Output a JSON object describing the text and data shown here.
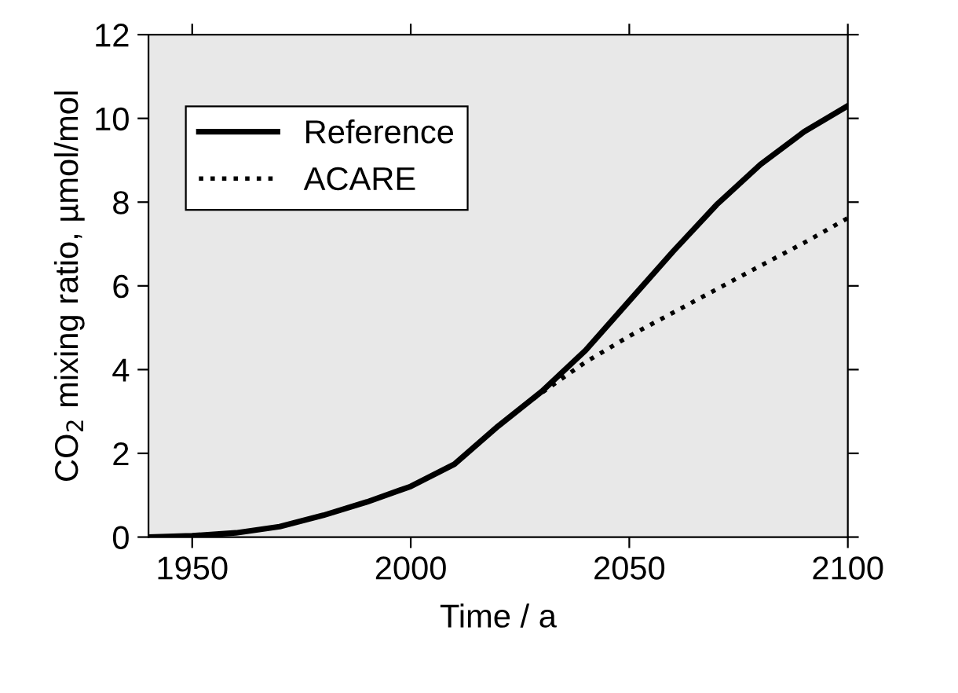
{
  "chart_data": {
    "type": "line",
    "xlabel": "Time / a",
    "ylabel": "CO$_{2}$ mixing ratio, µmol/mol",
    "xlim": [
      1940,
      2100
    ],
    "xticks": [
      1950,
      2000,
      2050,
      2100
    ],
    "ylim": [
      0,
      12
    ],
    "yticks": [
      0,
      2,
      4,
      6,
      8,
      10,
      12
    ],
    "grid": false,
    "legend": "top left",
    "marker": "none",
    "series": [
      {
        "name": "Reference",
        "color": "#000000",
        "line_style": "solid",
        "x": [
          1940,
          1950,
          1960,
          1970,
          1980,
          1990,
          2000,
          2010,
          2020,
          2030,
          2040,
          2050,
          2060,
          2070,
          2080,
          2090,
          2100
        ],
        "values": [
          0,
          0.03,
          0.1,
          0.25,
          0.52,
          0.84,
          1.21,
          1.74,
          2.65,
          3.48,
          4.46,
          5.64,
          6.82,
          7.94,
          8.9,
          9.68,
          10.3
        ]
      },
      {
        "name": "ACARE",
        "color": "#000000",
        "line_style": "dotted",
        "x": [
          2028,
          2030,
          2040,
          2050,
          2060,
          2070,
          2080,
          2090,
          2100
        ],
        "values": [
          3.3,
          3.45,
          4.18,
          4.8,
          5.36,
          5.92,
          6.48,
          7.03,
          7.62
        ]
      }
    ]
  }
}
